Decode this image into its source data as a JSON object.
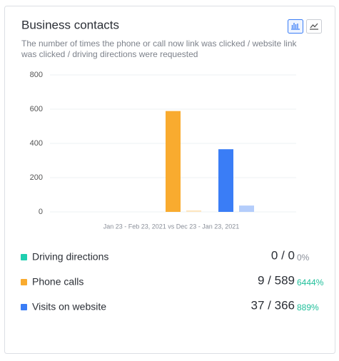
{
  "chart_data": {
    "type": "bar",
    "title": "Business contacts",
    "subtitle_lines": [
      "The number of times the phone or call now link was clicked / website link",
      "was clicked / driving directions were requested"
    ],
    "x_label": "Jan 23 - Feb 23, 2021 vs Dec 23 - Jan 23, 2021",
    "categories": [
      "Driving directions",
      "Phone calls",
      "Visits on website"
    ],
    "colors": [
      "#1fcfb0",
      "#f9ab2f",
      "#3a7df6"
    ],
    "series": [
      {
        "colors": [
          "#1fcfb0",
          "#f9ab2f",
          "#3a7df6"
        ],
        "values": [
          0,
          589,
          366
        ]
      },
      {
        "colors": [
          "#b9efe4",
          "#fde6c0",
          "#b4cdfb"
        ],
        "values": [
          0,
          9,
          37
        ]
      }
    ],
    "summary": [
      {
        "value_label": "0 / 0",
        "change": "0%",
        "change_color": "#8a8f99"
      },
      {
        "value_label": "9 / 589",
        "change": "6444%",
        "change_color": "#1fbf9a"
      },
      {
        "value_label": "37 / 366",
        "change": "889%",
        "change_color": "#1fbf9a"
      }
    ],
    "ylim": [
      0,
      800
    ],
    "yticks": [
      0,
      200,
      400,
      600,
      800
    ],
    "grid": true
  }
}
